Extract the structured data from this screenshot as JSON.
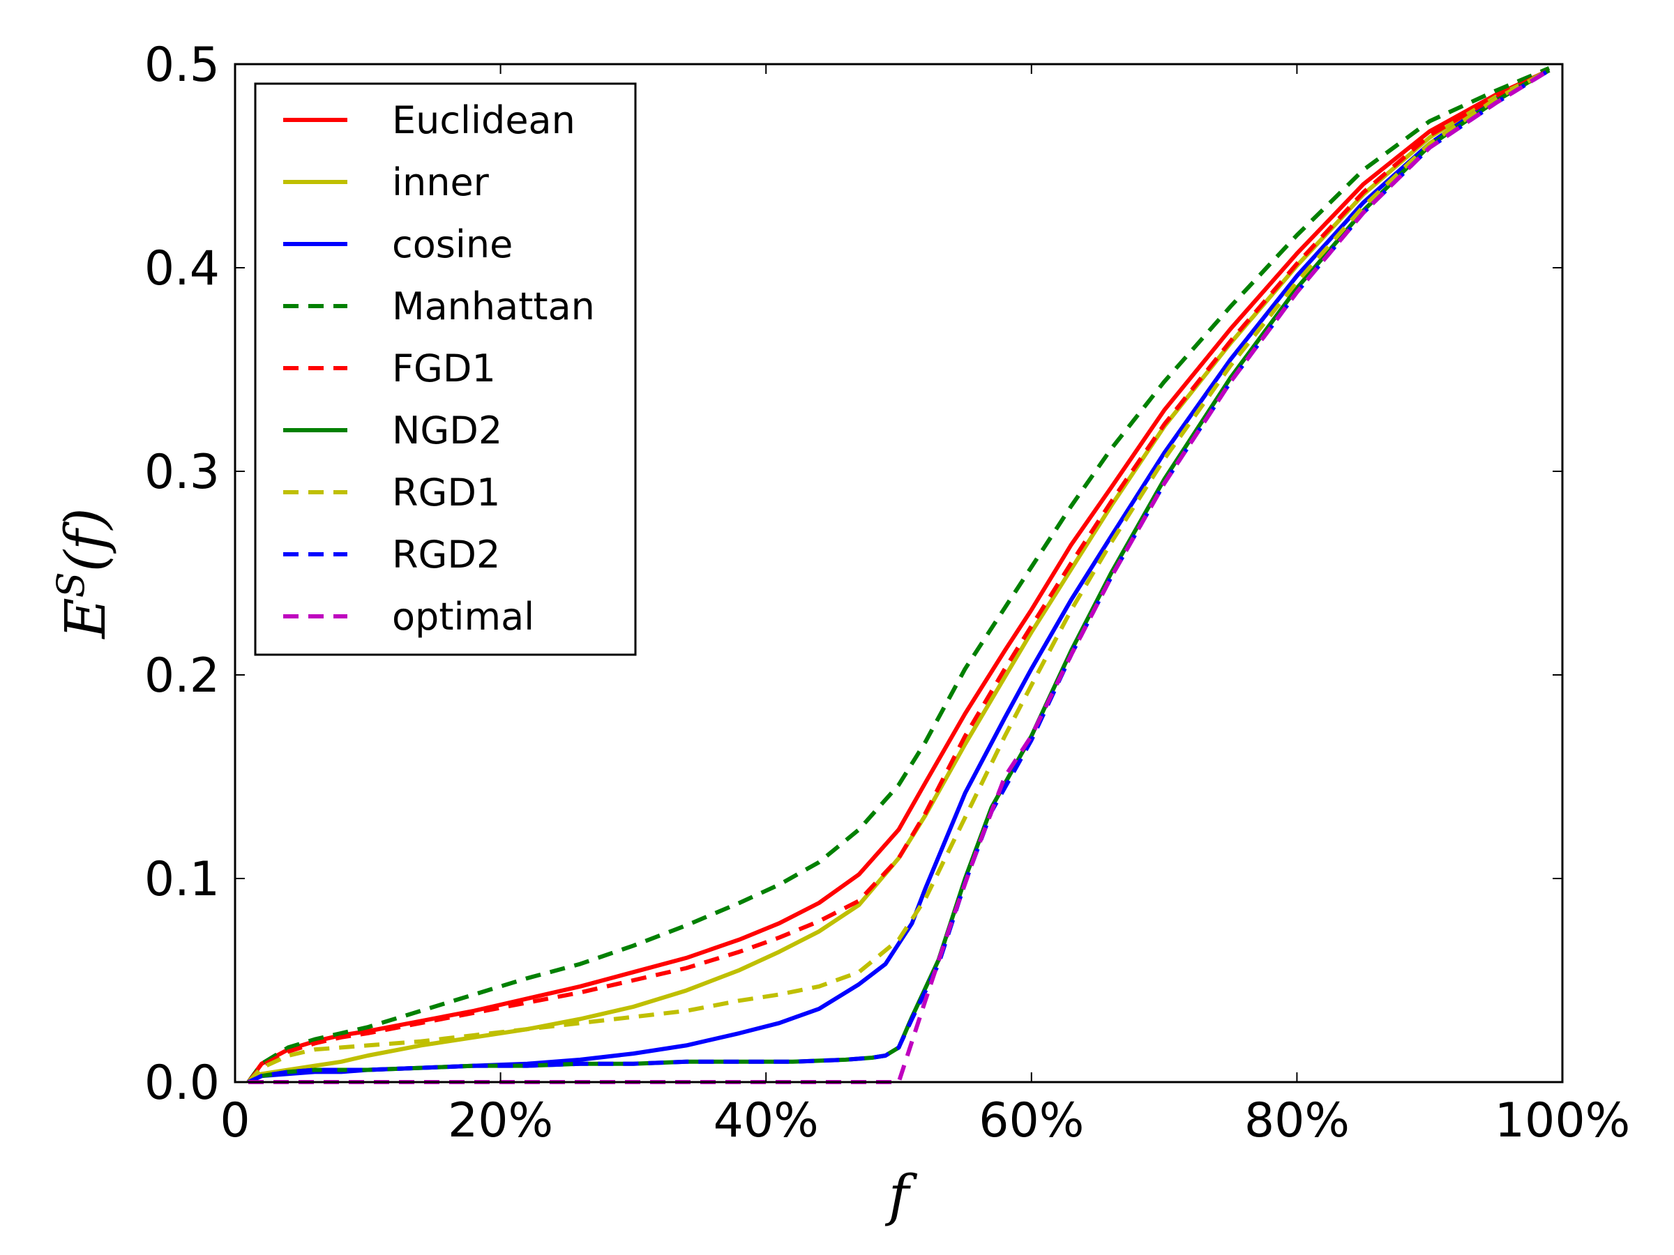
{
  "chart_data": {
    "type": "line",
    "xlabel": "f",
    "ylabel_main": "E",
    "ylabel_sup": "S",
    "ylabel_arg": "(f)",
    "xlim": [
      0,
      100
    ],
    "ylim": [
      0,
      0.5
    ],
    "x_ticks": [
      0,
      20,
      40,
      60,
      80,
      100
    ],
    "x_tick_labels": [
      "0",
      "20%",
      "40%",
      "60%",
      "80%",
      "100%"
    ],
    "y_ticks": [
      0,
      0.1,
      0.2,
      0.3,
      0.4,
      0.5
    ],
    "y_tick_labels": [
      "0.0",
      "0.1",
      "0.2",
      "0.3",
      "0.4",
      "0.5"
    ],
    "grid": false,
    "legend_position": "top-left",
    "series": [
      {
        "name": "Euclidean",
        "color": "#ff0000",
        "dash": "solid",
        "points": [
          [
            1,
            0
          ],
          [
            2,
            0.009
          ],
          [
            4,
            0.016
          ],
          [
            6,
            0.02
          ],
          [
            8,
            0.023
          ],
          [
            10,
            0.025
          ],
          [
            14,
            0.03
          ],
          [
            18,
            0.035
          ],
          [
            22,
            0.041
          ],
          [
            26,
            0.047
          ],
          [
            30,
            0.054
          ],
          [
            34,
            0.061
          ],
          [
            38,
            0.07
          ],
          [
            41,
            0.078
          ],
          [
            44,
            0.088
          ],
          [
            47,
            0.102
          ],
          [
            50,
            0.124
          ],
          [
            52,
            0.147
          ],
          [
            55,
            0.181
          ],
          [
            58,
            0.212
          ],
          [
            60,
            0.232
          ],
          [
            63,
            0.264
          ],
          [
            66,
            0.292
          ],
          [
            70,
            0.33
          ],
          [
            75,
            0.37
          ],
          [
            80,
            0.407
          ],
          [
            85,
            0.441
          ],
          [
            90,
            0.467
          ],
          [
            95,
            0.485
          ],
          [
            99,
            0.497
          ]
        ]
      },
      {
        "name": "inner",
        "color": "#bfbf00",
        "dash": "solid",
        "points": [
          [
            1,
            0
          ],
          [
            2,
            0.004
          ],
          [
            4,
            0.006
          ],
          [
            6,
            0.008
          ],
          [
            8,
            0.01
          ],
          [
            10,
            0.013
          ],
          [
            14,
            0.018
          ],
          [
            18,
            0.022
          ],
          [
            22,
            0.026
          ],
          [
            26,
            0.031
          ],
          [
            30,
            0.037
          ],
          [
            34,
            0.045
          ],
          [
            38,
            0.055
          ],
          [
            41,
            0.064
          ],
          [
            44,
            0.074
          ],
          [
            47,
            0.087
          ],
          [
            50,
            0.11
          ],
          [
            52,
            0.131
          ],
          [
            55,
            0.166
          ],
          [
            58,
            0.199
          ],
          [
            60,
            0.221
          ],
          [
            63,
            0.252
          ],
          [
            66,
            0.283
          ],
          [
            70,
            0.322
          ],
          [
            75,
            0.363
          ],
          [
            80,
            0.401
          ],
          [
            85,
            0.436
          ],
          [
            90,
            0.464
          ],
          [
            95,
            0.484
          ],
          [
            99,
            0.497
          ]
        ]
      },
      {
        "name": "cosine",
        "color": "#0000ff",
        "dash": "solid",
        "points": [
          [
            1,
            0
          ],
          [
            2,
            0.003
          ],
          [
            4,
            0.004
          ],
          [
            6,
            0.005
          ],
          [
            8,
            0.005
          ],
          [
            10,
            0.006
          ],
          [
            14,
            0.007
          ],
          [
            18,
            0.008
          ],
          [
            22,
            0.009
          ],
          [
            26,
            0.011
          ],
          [
            30,
            0.014
          ],
          [
            34,
            0.018
          ],
          [
            38,
            0.024
          ],
          [
            41,
            0.029
          ],
          [
            44,
            0.036
          ],
          [
            47,
            0.048
          ],
          [
            49,
            0.058
          ],
          [
            50,
            0.068
          ],
          [
            51,
            0.078
          ],
          [
            52,
            0.095
          ],
          [
            55,
            0.142
          ],
          [
            58,
            0.179
          ],
          [
            60,
            0.203
          ],
          [
            63,
            0.237
          ],
          [
            66,
            0.268
          ],
          [
            70,
            0.309
          ],
          [
            75,
            0.355
          ],
          [
            80,
            0.396
          ],
          [
            85,
            0.432
          ],
          [
            90,
            0.461
          ],
          [
            95,
            0.483
          ],
          [
            99,
            0.497
          ]
        ]
      },
      {
        "name": "Manhattan",
        "color": "#008000",
        "dash": "dashed",
        "points": [
          [
            1,
            0
          ],
          [
            2,
            0.009
          ],
          [
            4,
            0.017
          ],
          [
            6,
            0.021
          ],
          [
            8,
            0.024
          ],
          [
            10,
            0.027
          ],
          [
            14,
            0.035
          ],
          [
            18,
            0.043
          ],
          [
            22,
            0.051
          ],
          [
            26,
            0.058
          ],
          [
            30,
            0.067
          ],
          [
            34,
            0.077
          ],
          [
            38,
            0.088
          ],
          [
            41,
            0.097
          ],
          [
            44,
            0.108
          ],
          [
            47,
            0.124
          ],
          [
            50,
            0.146
          ],
          [
            52,
            0.167
          ],
          [
            55,
            0.203
          ],
          [
            58,
            0.233
          ],
          [
            60,
            0.253
          ],
          [
            63,
            0.283
          ],
          [
            66,
            0.311
          ],
          [
            70,
            0.344
          ],
          [
            75,
            0.381
          ],
          [
            80,
            0.416
          ],
          [
            85,
            0.448
          ],
          [
            90,
            0.472
          ],
          [
            95,
            0.487
          ],
          [
            99,
            0.498
          ]
        ]
      },
      {
        "name": "FGD1",
        "color": "#ff0000",
        "dash": "dashed",
        "points": [
          [
            1,
            0
          ],
          [
            2,
            0.008
          ],
          [
            4,
            0.015
          ],
          [
            6,
            0.019
          ],
          [
            8,
            0.022
          ],
          [
            10,
            0.024
          ],
          [
            14,
            0.029
          ],
          [
            18,
            0.034
          ],
          [
            22,
            0.039
          ],
          [
            26,
            0.044
          ],
          [
            30,
            0.05
          ],
          [
            34,
            0.056
          ],
          [
            38,
            0.064
          ],
          [
            41,
            0.071
          ],
          [
            44,
            0.079
          ],
          [
            47,
            0.089
          ],
          [
            50,
            0.11
          ],
          [
            52,
            0.132
          ],
          [
            55,
            0.17
          ],
          [
            58,
            0.203
          ],
          [
            60,
            0.224
          ],
          [
            63,
            0.255
          ],
          [
            66,
            0.285
          ],
          [
            70,
            0.323
          ],
          [
            75,
            0.364
          ],
          [
            80,
            0.402
          ],
          [
            85,
            0.437
          ],
          [
            90,
            0.465
          ],
          [
            95,
            0.484
          ],
          [
            99,
            0.497
          ]
        ]
      },
      {
        "name": "NGD2",
        "color": "#008000",
        "dash": "solid",
        "points": [
          [
            1,
            0
          ],
          [
            2,
            0.003
          ],
          [
            4,
            0.005
          ],
          [
            6,
            0.006
          ],
          [
            8,
            0.006
          ],
          [
            10,
            0.006
          ],
          [
            14,
            0.007
          ],
          [
            18,
            0.008
          ],
          [
            22,
            0.008
          ],
          [
            26,
            0.009
          ],
          [
            30,
            0.009
          ],
          [
            34,
            0.01
          ],
          [
            38,
            0.01
          ],
          [
            42,
            0.01
          ],
          [
            46,
            0.011
          ],
          [
            48,
            0.012
          ],
          [
            49,
            0.013
          ],
          [
            50,
            0.017
          ],
          [
            51,
            0.032
          ],
          [
            53,
            0.06
          ],
          [
            55,
            0.1
          ],
          [
            57,
            0.135
          ],
          [
            60,
            0.17
          ],
          [
            63,
            0.212
          ],
          [
            66,
            0.25
          ],
          [
            70,
            0.296
          ],
          [
            75,
            0.346
          ],
          [
            80,
            0.39
          ],
          [
            85,
            0.428
          ],
          [
            90,
            0.46
          ],
          [
            95,
            0.482
          ],
          [
            99,
            0.497
          ]
        ]
      },
      {
        "name": "RGD1",
        "color": "#bfbf00",
        "dash": "dashed",
        "points": [
          [
            1,
            0
          ],
          [
            2,
            0.007
          ],
          [
            4,
            0.013
          ],
          [
            6,
            0.016
          ],
          [
            8,
            0.017
          ],
          [
            10,
            0.018
          ],
          [
            14,
            0.02
          ],
          [
            18,
            0.023
          ],
          [
            22,
            0.026
          ],
          [
            26,
            0.029
          ],
          [
            30,
            0.032
          ],
          [
            34,
            0.035
          ],
          [
            38,
            0.04
          ],
          [
            41,
            0.043
          ],
          [
            44,
            0.047
          ],
          [
            47,
            0.054
          ],
          [
            50,
            0.07
          ],
          [
            52,
            0.09
          ],
          [
            55,
            0.13
          ],
          [
            58,
            0.17
          ],
          [
            60,
            0.195
          ],
          [
            63,
            0.232
          ],
          [
            66,
            0.265
          ],
          [
            70,
            0.306
          ],
          [
            75,
            0.352
          ],
          [
            80,
            0.393
          ],
          [
            85,
            0.43
          ],
          [
            90,
            0.461
          ],
          [
            95,
            0.483
          ],
          [
            99,
            0.497
          ]
        ]
      },
      {
        "name": "RGD2",
        "color": "#0000ff",
        "dash": "dashed",
        "points": [
          [
            1,
            0
          ],
          [
            2,
            0.003
          ],
          [
            4,
            0.005
          ],
          [
            6,
            0.006
          ],
          [
            8,
            0.006
          ],
          [
            10,
            0.006
          ],
          [
            14,
            0.007
          ],
          [
            18,
            0.008
          ],
          [
            22,
            0.008
          ],
          [
            26,
            0.009
          ],
          [
            30,
            0.009
          ],
          [
            34,
            0.01
          ],
          [
            38,
            0.01
          ],
          [
            42,
            0.01
          ],
          [
            46,
            0.011
          ],
          [
            48,
            0.012
          ],
          [
            49,
            0.013
          ],
          [
            50,
            0.017
          ],
          [
            51,
            0.031
          ],
          [
            53,
            0.058
          ],
          [
            55,
            0.098
          ],
          [
            57,
            0.133
          ],
          [
            60,
            0.168
          ],
          [
            63,
            0.21
          ],
          [
            66,
            0.248
          ],
          [
            70,
            0.294
          ],
          [
            75,
            0.344
          ],
          [
            80,
            0.388
          ],
          [
            85,
            0.427
          ],
          [
            90,
            0.459
          ],
          [
            95,
            0.481
          ],
          [
            99,
            0.497
          ]
        ]
      },
      {
        "name": "optimal",
        "color": "#bf00bf",
        "dash": "dashed",
        "points": [
          [
            1,
            0
          ],
          [
            10,
            0
          ],
          [
            20,
            0
          ],
          [
            30,
            0
          ],
          [
            40,
            0
          ],
          [
            50,
            0
          ],
          [
            52,
            0.04
          ],
          [
            54,
            0.079
          ],
          [
            56,
            0.116
          ],
          [
            58,
            0.15
          ],
          [
            60,
            0.17
          ],
          [
            63,
            0.21
          ],
          [
            66,
            0.248
          ],
          [
            70,
            0.294
          ],
          [
            75,
            0.344
          ],
          [
            80,
            0.388
          ],
          [
            85,
            0.427
          ],
          [
            90,
            0.459
          ],
          [
            95,
            0.481
          ],
          [
            99,
            0.497
          ]
        ]
      }
    ]
  }
}
